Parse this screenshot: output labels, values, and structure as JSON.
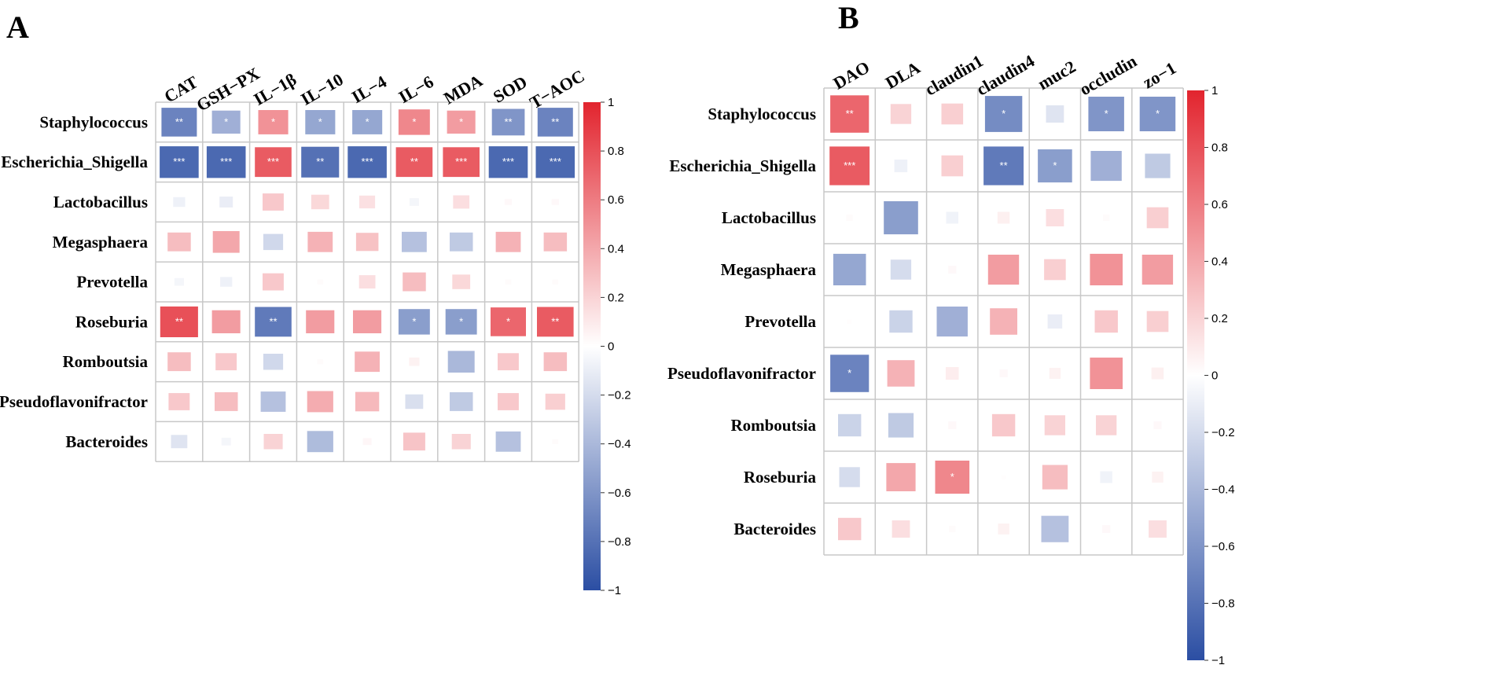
{
  "colors": {
    "negative": "#2b4ea3",
    "neutral": "#ffffff",
    "positive": "#e2242e",
    "grid": "#c8c8c8"
  },
  "colorbar_ticks": [
    "1",
    "0.8",
    "0.6",
    "0.4",
    "0.2",
    "0",
    "−0.2",
    "−0.4",
    "−0.6",
    "−0.8",
    "−1"
  ],
  "chart_data": [
    {
      "type": "heatmap",
      "panel": "A",
      "columns": [
        "CAT",
        "GSH−PX",
        "IL−1β",
        "IL−10",
        "IL−4",
        "IL−6",
        "MDA",
        "SOD",
        "T−AOC"
      ],
      "rows": [
        "Staphylococcus",
        "Escherichia_Shigella",
        "Lactobacillus",
        "Megasphaera",
        "Prevotella",
        "Roseburia",
        "Romboutsia",
        "Pseudoflavonifractor",
        "Bacteroides"
      ],
      "values": [
        [
          -0.7,
          -0.45,
          0.5,
          -0.5,
          -0.5,
          0.55,
          0.45,
          -0.6,
          -0.7
        ],
        [
          -0.85,
          -0.85,
          0.75,
          -0.8,
          -0.85,
          0.75,
          0.75,
          -0.85,
          -0.85
        ],
        [
          -0.08,
          -0.1,
          0.25,
          0.18,
          0.14,
          -0.05,
          0.15,
          0.03,
          0.03
        ],
        [
          0.3,
          0.4,
          -0.22,
          0.35,
          0.28,
          -0.35,
          -0.3,
          0.35,
          0.3
        ],
        [
          -0.05,
          -0.08,
          0.25,
          0.02,
          0.15,
          0.3,
          0.18,
          0.02,
          0.02
        ],
        [
          0.8,
          0.45,
          -0.75,
          0.45,
          0.45,
          -0.55,
          -0.55,
          0.7,
          0.75
        ],
        [
          0.3,
          0.25,
          -0.22,
          0.02,
          0.35,
          0.06,
          -0.4,
          0.25,
          0.3
        ],
        [
          0.25,
          0.3,
          -0.35,
          0.38,
          0.32,
          -0.18,
          -0.3,
          0.25,
          0.22
        ],
        [
          -0.15,
          -0.05,
          0.2,
          -0.38,
          0.04,
          0.27,
          0.2,
          -0.35,
          0.02
        ]
      ],
      "significance": [
        [
          "**",
          "*",
          "*",
          "*",
          "*",
          "*",
          "*",
          "**",
          "**"
        ],
        [
          "***",
          "***",
          "***",
          "**",
          "***",
          "**",
          "***",
          "***",
          "***"
        ],
        [
          "",
          "",
          "",
          "",
          "",
          "",
          "",
          "",
          ""
        ],
        [
          "",
          "",
          "",
          "",
          "",
          "",
          "",
          "",
          ""
        ],
        [
          "",
          "",
          "",
          "",
          "",
          "",
          "",
          "",
          ""
        ],
        [
          "**",
          "",
          "**",
          "",
          "",
          "*",
          "*",
          "*",
          "**"
        ],
        [
          "",
          "",
          "",
          "",
          "",
          "",
          "",
          "",
          ""
        ],
        [
          "",
          "",
          "",
          "",
          "",
          "",
          "",
          "",
          ""
        ],
        [
          "",
          "",
          "",
          "",
          "",
          "",
          "",
          "",
          ""
        ]
      ],
      "color_range": [
        -1,
        1
      ]
    },
    {
      "type": "heatmap",
      "panel": "B",
      "columns": [
        "DAO",
        "DLA",
        "claudin1",
        "claudin4",
        "muc2",
        "occludin",
        "zo−1"
      ],
      "rows": [
        "Staphylococcus",
        "Escherichia_Shigella",
        "Lactobacillus",
        "Megasphaera",
        "Prevotella",
        "Pseudoflavonifractor",
        "Romboutsia",
        "Roseburia",
        "Bacteroides"
      ],
      "values": [
        [
          0.7,
          0.2,
          0.22,
          -0.65,
          -0.15,
          -0.6,
          -0.6
        ],
        [
          0.75,
          -0.08,
          0.22,
          -0.75,
          -0.55,
          -0.45,
          -0.3
        ],
        [
          0.02,
          -0.55,
          -0.07,
          0.07,
          0.15,
          0.02,
          0.22
        ],
        [
          -0.5,
          -0.2,
          0.03,
          0.45,
          0.22,
          0.5,
          0.45
        ],
        [
          0.01,
          -0.25,
          -0.45,
          0.35,
          -0.1,
          0.25,
          0.22
        ],
        [
          -0.7,
          0.35,
          0.08,
          0.03,
          0.06,
          0.5,
          0.07
        ],
        [
          -0.25,
          -0.3,
          0.03,
          0.25,
          0.2,
          0.2,
          0.03
        ],
        [
          -0.2,
          0.4,
          0.55,
          0.01,
          0.3,
          -0.07,
          0.06
        ],
        [
          0.25,
          0.15,
          0.02,
          0.06,
          -0.35,
          0.03,
          0.15
        ]
      ],
      "significance": [
        [
          "**",
          "",
          "",
          "*",
          "",
          "*",
          "*"
        ],
        [
          "***",
          "",
          "",
          "**",
          "*",
          "",
          ""
        ],
        [
          "",
          "",
          "",
          "",
          "",
          "",
          ""
        ],
        [
          "",
          "",
          "",
          "",
          "",
          "",
          ""
        ],
        [
          "",
          "",
          "",
          "",
          "",
          "",
          ""
        ],
        [
          "*",
          "",
          "",
          "",
          "",
          "",
          ""
        ],
        [
          "",
          "",
          "",
          "",
          "",
          "",
          ""
        ],
        [
          "",
          "",
          "*",
          "",
          "",
          "",
          ""
        ],
        [
          "",
          "",
          "",
          "",
          "",
          "",
          ""
        ]
      ],
      "color_range": [
        -1,
        1
      ]
    }
  ]
}
